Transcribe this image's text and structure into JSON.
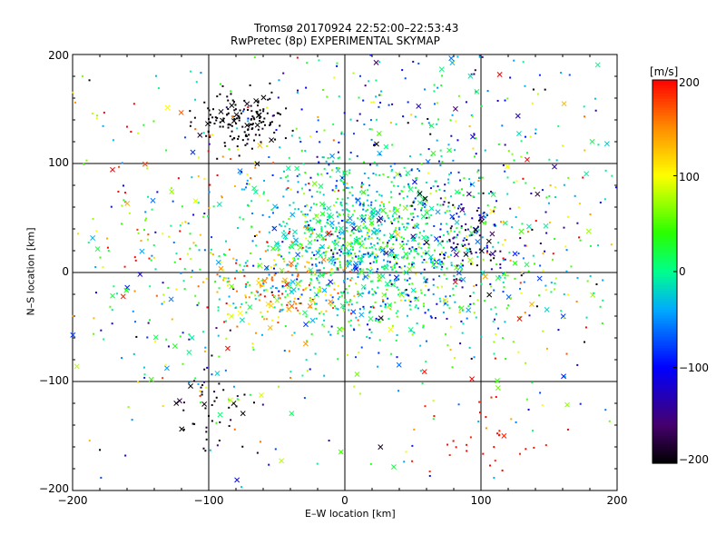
{
  "chart_data": {
    "type": "scatter",
    "title": "Tromsø 20170924 22:52:00–22:53:43",
    "subtitle": "RwPretec (8p) EXPERIMENTAL SKYMAP",
    "xlabel": "E–W location [km]",
    "ylabel": "N–S location [km]",
    "xlim": [
      -200,
      200
    ],
    "ylim": [
      -200,
      200
    ],
    "xticks": [
      "−200",
      "−100",
      "0",
      "100",
      "200"
    ],
    "yticks": [
      "−200",
      "−100",
      "0",
      "100",
      "200"
    ],
    "grid": true,
    "colorbar": {
      "label": "[m/s]",
      "range": [
        -200,
        200
      ],
      "ticks": [
        "200",
        "100",
        "0",
        "−100",
        "−200"
      ],
      "colormap": "rainbow"
    },
    "markers": {
      "dot": "small point",
      "cross": "x marker"
    },
    "clusters": [
      {
        "center": [
          10,
          25
        ],
        "spread": [
          45,
          40
        ],
        "count": 900,
        "velocity_mean": 0,
        "velocity_sd": 45
      },
      {
        "center": [
          30,
          15
        ],
        "spread": [
          55,
          45
        ],
        "count": 450,
        "velocity_mean": -30,
        "velocity_sd": 60
      },
      {
        "center": [
          -40,
          -15
        ],
        "spread": [
          25,
          25
        ],
        "count": 140,
        "velocity_mean": 150,
        "velocity_sd": 40
      },
      {
        "center": [
          -75,
          140
        ],
        "spread": [
          16,
          14
        ],
        "count": 150,
        "velocity_mean": -200,
        "velocity_sd": 8
      },
      {
        "center": [
          -100,
          -130
        ],
        "spread": [
          15,
          20
        ],
        "count": 45,
        "velocity_mean": -190,
        "velocity_sd": 20
      },
      {
        "center": [
          90,
          30
        ],
        "spread": [
          25,
          20
        ],
        "count": 110,
        "velocity_mean": -160,
        "velocity_sd": 40
      },
      {
        "center": [
          40,
          150
        ],
        "spread": [
          60,
          40
        ],
        "count": 150,
        "velocity_mean": -60,
        "velocity_sd": 80
      },
      {
        "center": [
          -130,
          50
        ],
        "spread": [
          55,
          60
        ],
        "count": 170,
        "velocity_mean": 90,
        "velocity_sd": 90
      },
      {
        "center": [
          140,
          20
        ],
        "spread": [
          40,
          70
        ],
        "count": 160,
        "velocity_mean": 40,
        "velocity_sd": 100
      },
      {
        "center": [
          100,
          -150
        ],
        "spread": [
          20,
          30
        ],
        "count": 30,
        "velocity_mean": 195,
        "velocity_sd": 5
      },
      {
        "center": [
          -120,
          -70
        ],
        "spread": [
          30,
          30
        ],
        "count": 50,
        "velocity_mean": 0,
        "velocity_sd": 80
      },
      {
        "center": [
          0,
          0
        ],
        "spread": [
          160,
          150
        ],
        "count": 400,
        "velocity_mean": 0,
        "velocity_sd": 100
      }
    ]
  }
}
